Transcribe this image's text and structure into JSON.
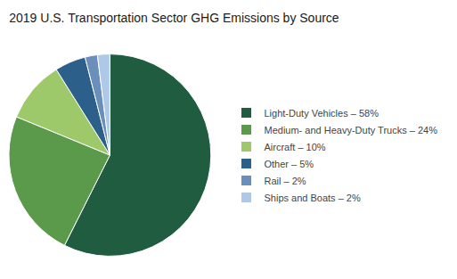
{
  "chart_data": {
    "type": "pie",
    "title": "2019 U.S. Transportation Sector GHG Emissions by Source",
    "categories": [
      "Light-Duty Vehicles – 58%",
      "Medium- and Heavy-Duty Trucks – 24%",
      "Aircraft – 10%",
      "Other – 5%",
      "Rail – 2%",
      "Ships and Boats – 2%"
    ],
    "values": [
      58,
      24,
      10,
      5,
      2,
      2
    ],
    "colors": [
      "#1f5c40",
      "#5a9a4a",
      "#9dc96a",
      "#2c5f8a",
      "#6b8fbb",
      "#aec9e8"
    ],
    "legend": "right"
  }
}
